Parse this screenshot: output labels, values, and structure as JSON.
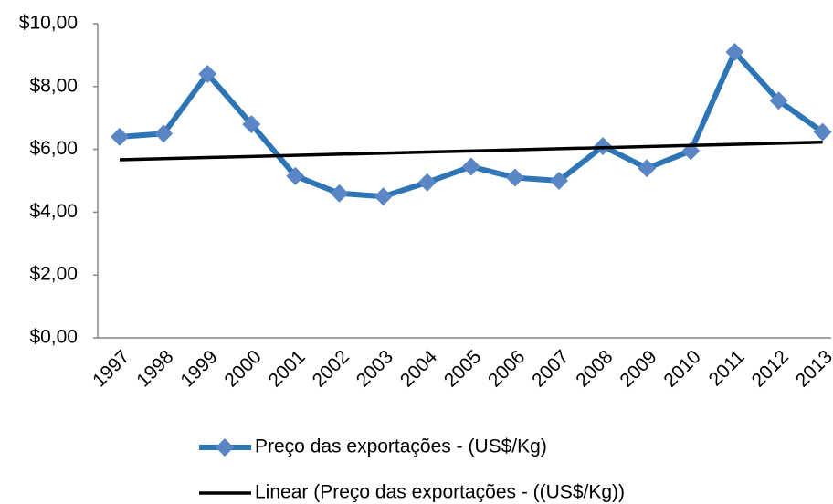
{
  "chart_data": {
    "type": "line",
    "categories": [
      "1997",
      "1998",
      "1999",
      "2000",
      "2001",
      "2002",
      "2003",
      "2004",
      "2005",
      "2006",
      "2007",
      "2008",
      "2009",
      "2010",
      "2011",
      "2012",
      "2013"
    ],
    "series": [
      {
        "name": "Preço das exportações - (US$/Kg)",
        "color": "#2e75b6",
        "marker": "diamond",
        "marker_color": "#5b86c5",
        "values": [
          6.4,
          6.5,
          8.4,
          6.8,
          5.15,
          4.6,
          4.5,
          4.95,
          5.45,
          5.1,
          5.0,
          6.1,
          5.4,
          5.95,
          9.1,
          7.55,
          6.55
        ]
      },
      {
        "name": "Linear (Preço das exportações - ((US$/Kg))",
        "color": "#000000",
        "values": [
          5.67,
          5.705,
          5.74,
          5.775,
          5.81,
          5.845,
          5.88,
          5.915,
          5.95,
          5.985,
          6.02,
          6.055,
          6.09,
          6.125,
          6.16,
          6.195,
          6.23
        ]
      }
    ],
    "ylim": [
      0,
      10
    ],
    "yticks": [
      {
        "value": 0,
        "label": "$0,00"
      },
      {
        "value": 2,
        "label": "$2,00"
      },
      {
        "value": 4,
        "label": "$4,00"
      },
      {
        "value": 6,
        "label": "$6,00"
      },
      {
        "value": 8,
        "label": "$8,00"
      },
      {
        "value": 10,
        "label": "$10,00"
      }
    ],
    "grid": false,
    "legend": "bottom"
  }
}
